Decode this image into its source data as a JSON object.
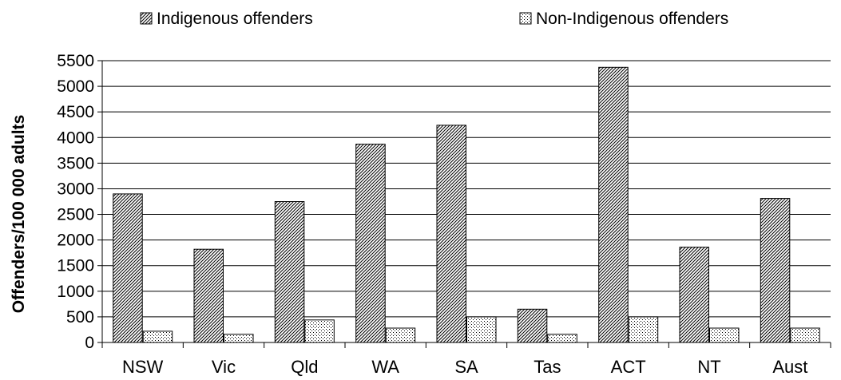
{
  "chart_data": {
    "type": "bar",
    "title": "",
    "xlabel": "",
    "ylabel": "Offenders/100 000 adults",
    "ylim": [
      0,
      5500
    ],
    "yticks": [
      0,
      500,
      1000,
      1500,
      2000,
      2500,
      3000,
      3500,
      4000,
      4500,
      5000,
      5500
    ],
    "grid": true,
    "legend_position": "top",
    "categories": [
      "NSW",
      "Vic",
      "Qld",
      "WA",
      "SA",
      "Tas",
      "ACT",
      "NT",
      "Aust"
    ],
    "series": [
      {
        "name": "Indigenous offenders",
        "pattern": "diagonal-hatch",
        "values": [
          2900,
          1820,
          2750,
          3870,
          4240,
          650,
          5370,
          1860,
          2810
        ]
      },
      {
        "name": "Non-Indigenous offenders",
        "pattern": "dotted",
        "values": [
          220,
          160,
          440,
          280,
          500,
          160,
          500,
          280,
          280
        ]
      }
    ]
  }
}
